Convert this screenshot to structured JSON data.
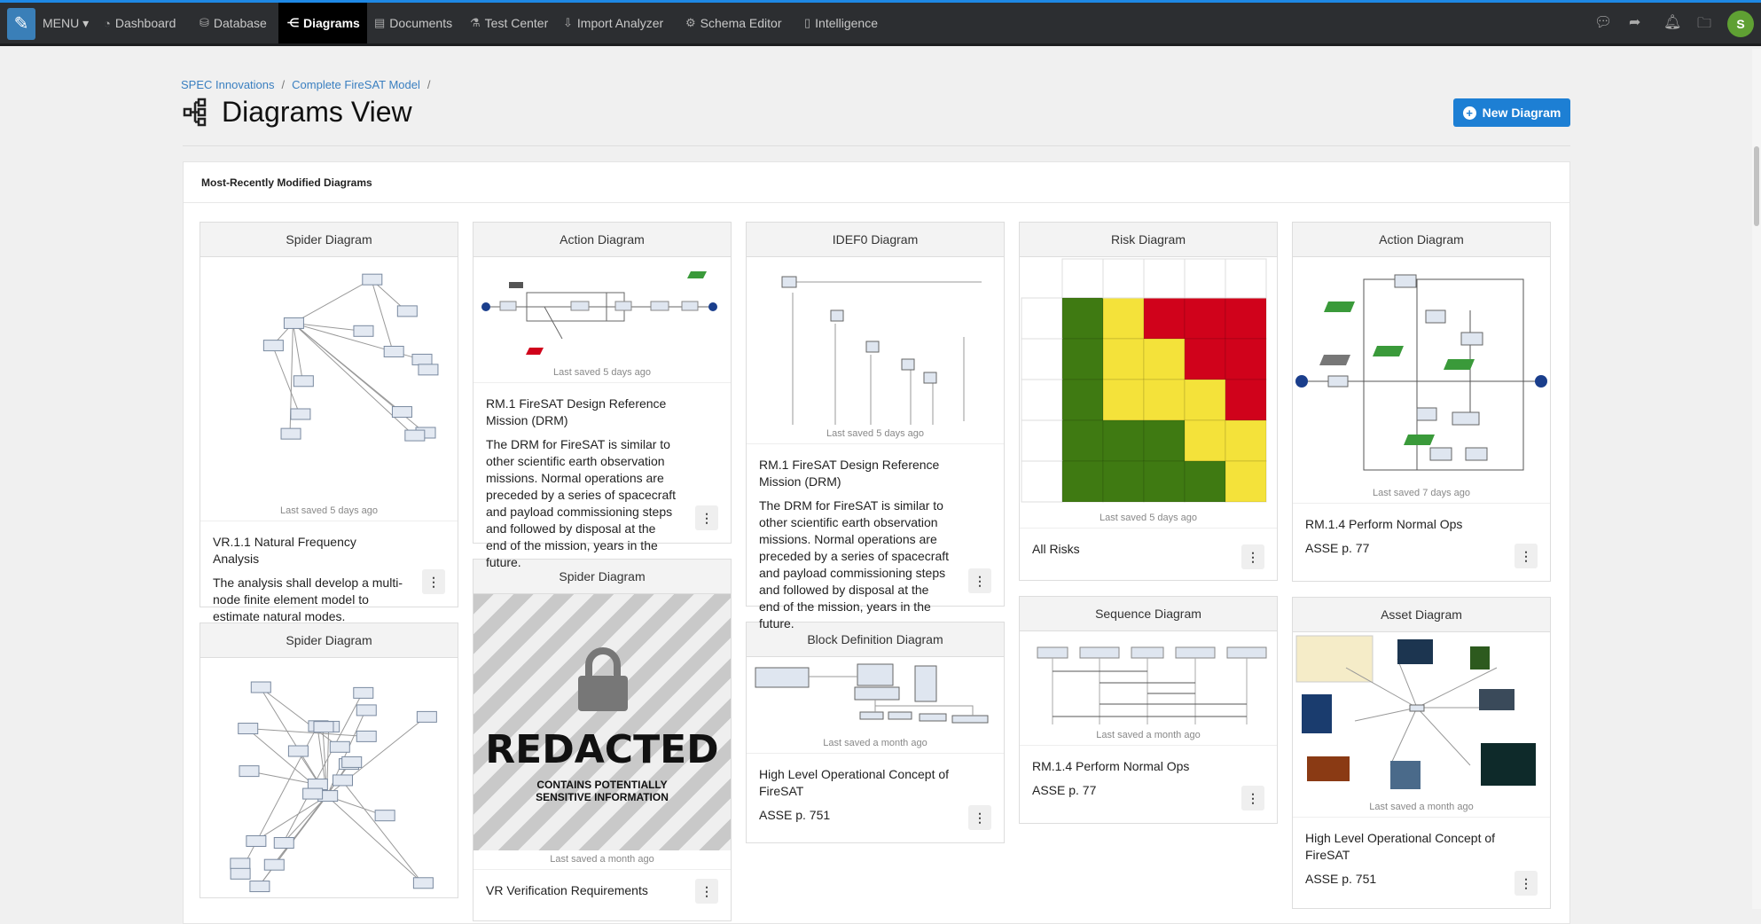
{
  "nav": {
    "menu": "MENU ▾",
    "items": [
      {
        "label": "Dashboard",
        "icon": "dashboard-icon"
      },
      {
        "label": "Database",
        "icon": "database-icon"
      },
      {
        "label": "Diagrams",
        "icon": "diagram-icon",
        "active": true
      },
      {
        "label": "Documents",
        "icon": "document-icon"
      },
      {
        "label": "Test Center",
        "icon": "flask-icon"
      },
      {
        "label": "Import Analyzer",
        "icon": "import-icon"
      },
      {
        "label": "Schema Editor",
        "icon": "schema-icon"
      },
      {
        "label": "Intelligence",
        "icon": "intelligence-icon"
      }
    ],
    "right_icons": [
      "chat-icon",
      "share-icon",
      "bell-icon",
      "folder-icon"
    ],
    "avatar": "S"
  },
  "breadcrumb": [
    "SPEC Innovations",
    "Complete FireSAT Model"
  ],
  "page_title": "Diagrams View",
  "new_button": "New Diagram",
  "panel_title": "Most-Recently Modified Diagrams",
  "colors": {
    "accent": "#1d7fd4",
    "nav": "#2c2e31",
    "risk_green": "#3f7a12",
    "risk_yellow": "#f4e23a",
    "risk_red": "#d0021b"
  },
  "cards": [
    {
      "type": "Spider Diagram",
      "saved": "Last saved 5 days ago",
      "title": "VR.1.1 Natural Frequency Analysis",
      "desc": "The analysis shall develop a multi-node finite element model to estimate natural modes."
    },
    {
      "type": "Spider Diagram",
      "saved": "",
      "title": "",
      "desc": ""
    },
    {
      "type": "Action Diagram",
      "saved": "Last saved 5 days ago",
      "title": "RM.1 FireSAT Design Reference Mission (DRM)",
      "desc": "The DRM for FireSAT is similar to other scientific earth observation missions. Normal operations are preceded by a series of spacecraft and payload commissioning steps and followed by disposal at the end of the mission, years in the future."
    },
    {
      "type": "Spider Diagram",
      "saved": "Last saved a month ago",
      "title": "VR Verification Requirements",
      "desc": "",
      "redacted": {
        "big": "REDACTED",
        "small": "CONTAINS POTENTIALLY SENSITIVE INFORMATION"
      }
    },
    {
      "type": "IDEF0 Diagram",
      "saved": "Last saved 5 days ago",
      "title": "RM.1 FireSAT Design Reference Mission (DRM)",
      "desc": "The DRM for FireSAT is similar to other scientific earth observation missions. Normal operations are preceded by a series of spacecraft and payload commissioning steps and followed by disposal at the end of the mission, years in the future."
    },
    {
      "type": "Block Definition Diagram",
      "saved": "Last saved a month ago",
      "title": "High Level Operational Concept of FireSAT",
      "desc": "ASSE p. 751"
    },
    {
      "type": "Risk Diagram",
      "saved": "Last saved 5 days ago",
      "title": "All Risks",
      "desc": "",
      "risk_matrix": [
        [
          "G",
          "Y",
          "R",
          "R",
          "R"
        ],
        [
          "G",
          "Y",
          "Y",
          "R",
          "R"
        ],
        [
          "G",
          "Y",
          "Y",
          "Y",
          "R"
        ],
        [
          "G",
          "G",
          "G",
          "Y",
          "Y"
        ],
        [
          "G",
          "G",
          "G",
          "G",
          "Y"
        ]
      ]
    },
    {
      "type": "Sequence Diagram",
      "saved": "Last saved a month ago",
      "title": "RM.1.4 Perform Normal Ops",
      "desc": "ASSE p. 77"
    },
    {
      "type": "Action Diagram",
      "saved": "Last saved 7 days ago",
      "title": "RM.1.4 Perform Normal Ops",
      "desc": "ASSE p. 77"
    },
    {
      "type": "Asset Diagram",
      "saved": "Last saved a month ago",
      "title": "High Level Operational Concept of FireSAT",
      "desc": "ASSE p. 751"
    }
  ]
}
